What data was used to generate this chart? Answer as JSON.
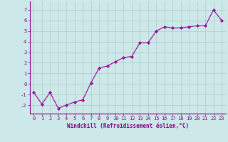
{
  "x": [
    0,
    1,
    2,
    3,
    4,
    5,
    6,
    7,
    8,
    9,
    10,
    11,
    12,
    13,
    14,
    15,
    16,
    17,
    18,
    19,
    20,
    21,
    22,
    23
  ],
  "y": [
    -0.8,
    -1.9,
    -0.8,
    -2.3,
    -2.0,
    -1.7,
    -1.5,
    0.1,
    1.5,
    1.7,
    2.1,
    2.5,
    2.6,
    3.9,
    3.9,
    5.0,
    5.4,
    5.3,
    5.3,
    5.4,
    5.5,
    5.5,
    7.0,
    6.0
  ],
  "line_color": "#990099",
  "marker": "D",
  "markersize": 2.0,
  "linewidth": 0.8,
  "background_color": "#cce8e8",
  "grid_color": "#aacccc",
  "xlabel": "Windchill (Refroidissement éolien,°C)",
  "ylabel": "",
  "ylim": [
    -2.8,
    7.8
  ],
  "xlim": [
    -0.5,
    23.5
  ],
  "yticks": [
    -2,
    -1,
    0,
    1,
    2,
    3,
    4,
    5,
    6,
    7
  ],
  "xticks": [
    0,
    1,
    2,
    3,
    4,
    5,
    6,
    7,
    8,
    9,
    10,
    11,
    12,
    13,
    14,
    15,
    16,
    17,
    18,
    19,
    20,
    21,
    22,
    23
  ],
  "tick_color": "#880088",
  "tick_fontsize": 5.0,
  "xlabel_fontsize": 5.5,
  "spine_color": "#880088"
}
